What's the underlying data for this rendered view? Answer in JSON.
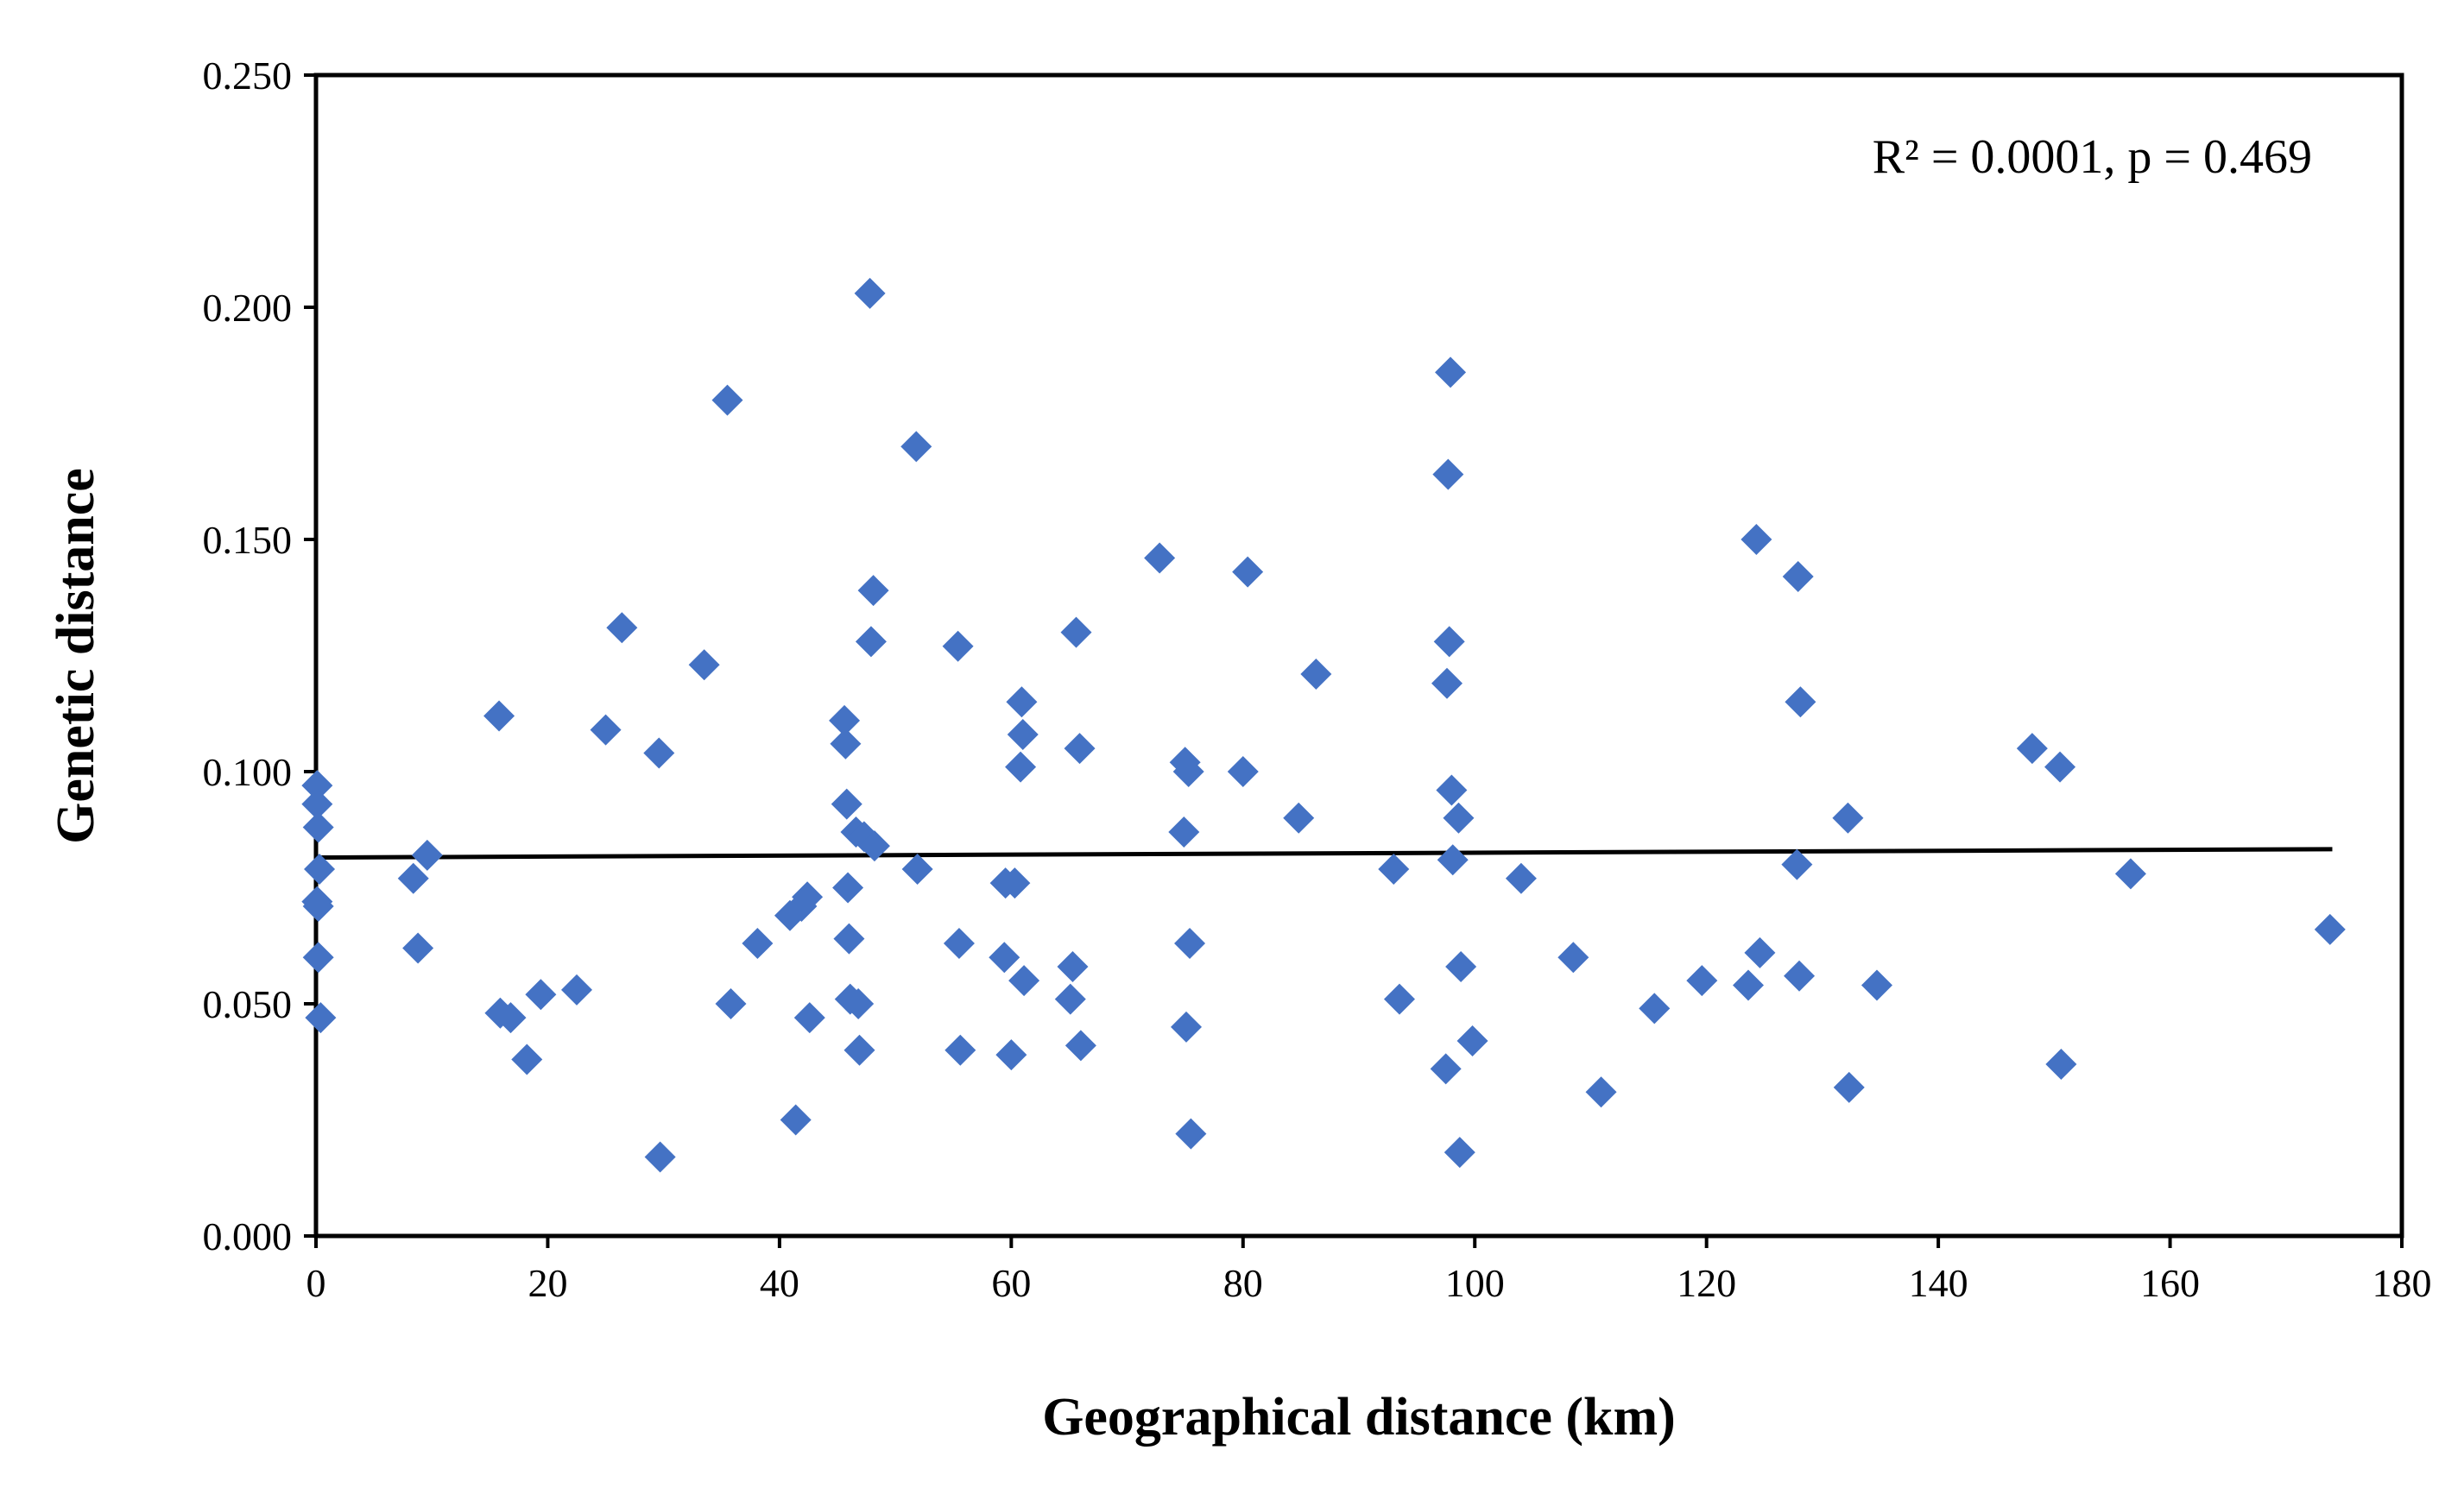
{
  "chart_data": {
    "type": "scatter",
    "title": "",
    "xlabel": "Geographical distance (km)",
    "ylabel": "Genetic distance",
    "xlim": [
      0,
      180
    ],
    "ylim": [
      0,
      0.25
    ],
    "xticks": [
      0,
      20,
      40,
      60,
      80,
      100,
      120,
      140,
      160,
      180
    ],
    "xtick_labels": [
      "0",
      "20",
      "40",
      "60",
      "80",
      "100",
      "120",
      "140",
      "160",
      "180"
    ],
    "yticks": [
      0,
      0.05,
      0.1,
      0.15,
      0.2,
      0.25
    ],
    "ytick_labels": [
      "0.000",
      "0.050",
      "0.100",
      "0.150",
      "0.200",
      "0.250"
    ],
    "grid": false,
    "annotation": "R² = 0.0001, p = 0.469",
    "marker_color": "#4472C4",
    "trendline": {
      "x": [
        0,
        174
      ],
      "y": [
        0.0815,
        0.0833
      ],
      "color": "#000000"
    },
    "points": [
      [
        0.1,
        0.097
      ],
      [
        0.1,
        0.093
      ],
      [
        0.2,
        0.088
      ],
      [
        0.3,
        0.079
      ],
      [
        0.1,
        0.072
      ],
      [
        0.2,
        0.071
      ],
      [
        0.2,
        0.06
      ],
      [
        0.4,
        0.047
      ],
      [
        8.4,
        0.077
      ],
      [
        8.8,
        0.062
      ],
      [
        9.6,
        0.082
      ],
      [
        15.8,
        0.112
      ],
      [
        15.9,
        0.048
      ],
      [
        16.8,
        0.047
      ],
      [
        18.2,
        0.038
      ],
      [
        19.4,
        0.052
      ],
      [
        22.5,
        0.053
      ],
      [
        25.0,
        0.109
      ],
      [
        26.4,
        0.131
      ],
      [
        29.6,
        0.104
      ],
      [
        29.7,
        0.017
      ],
      [
        33.5,
        0.123
      ],
      [
        35.5,
        0.18
      ],
      [
        35.8,
        0.05
      ],
      [
        38.1,
        0.063
      ],
      [
        40.9,
        0.069
      ],
      [
        41.4,
        0.025
      ],
      [
        41.9,
        0.071
      ],
      [
        42.4,
        0.073
      ],
      [
        42.6,
        0.047
      ],
      [
        45.6,
        0.111
      ],
      [
        45.7,
        0.106
      ],
      [
        45.8,
        0.093
      ],
      [
        45.9,
        0.075
      ],
      [
        46.0,
        0.064
      ],
      [
        46.1,
        0.051
      ],
      [
        46.6,
        0.087
      ],
      [
        46.8,
        0.05
      ],
      [
        46.9,
        0.04
      ],
      [
        47.3,
        0.086
      ],
      [
        47.8,
        0.203
      ],
      [
        47.9,
        0.128
      ],
      [
        48.1,
        0.139
      ],
      [
        48.2,
        0.084
      ],
      [
        51.8,
        0.17
      ],
      [
        51.9,
        0.079
      ],
      [
        55.4,
        0.127
      ],
      [
        55.5,
        0.063
      ],
      [
        55.6,
        0.04
      ],
      [
        59.4,
        0.06
      ],
      [
        59.5,
        0.076
      ],
      [
        60.0,
        0.039
      ],
      [
        60.3,
        0.076
      ],
      [
        60.8,
        0.101
      ],
      [
        60.9,
        0.115
      ],
      [
        61.0,
        0.108
      ],
      [
        61.1,
        0.055
      ],
      [
        65.1,
        0.051
      ],
      [
        65.3,
        0.058
      ],
      [
        65.6,
        0.13
      ],
      [
        65.9,
        0.105
      ],
      [
        66.0,
        0.041
      ],
      [
        72.8,
        0.146
      ],
      [
        74.9,
        0.087
      ],
      [
        75.0,
        0.102
      ],
      [
        75.1,
        0.045
      ],
      [
        75.3,
        0.1
      ],
      [
        75.4,
        0.063
      ],
      [
        75.5,
        0.022
      ],
      [
        80.0,
        0.1
      ],
      [
        80.4,
        0.143
      ],
      [
        84.8,
        0.09
      ],
      [
        86.3,
        0.121
      ],
      [
        93.0,
        0.079
      ],
      [
        93.5,
        0.051
      ],
      [
        97.5,
        0.036
      ],
      [
        97.6,
        0.119
      ],
      [
        97.7,
        0.164
      ],
      [
        97.8,
        0.128
      ],
      [
        97.9,
        0.186
      ],
      [
        98.0,
        0.096
      ],
      [
        98.1,
        0.081
      ],
      [
        98.6,
        0.09
      ],
      [
        98.7,
        0.018
      ],
      [
        98.8,
        0.058
      ],
      [
        99.8,
        0.042
      ],
      [
        104.0,
        0.077
      ],
      [
        108.5,
        0.06
      ],
      [
        110.9,
        0.031
      ],
      [
        115.5,
        0.049
      ],
      [
        119.6,
        0.055
      ],
      [
        123.6,
        0.054
      ],
      [
        124.3,
        0.15
      ],
      [
        124.6,
        0.061
      ],
      [
        127.8,
        0.08
      ],
      [
        127.9,
        0.142
      ],
      [
        128.0,
        0.056
      ],
      [
        128.1,
        0.115
      ],
      [
        132.2,
        0.09
      ],
      [
        132.3,
        0.032
      ],
      [
        134.7,
        0.054
      ],
      [
        148.1,
        0.105
      ],
      [
        150.5,
        0.101
      ],
      [
        150.6,
        0.037
      ],
      [
        156.6,
        0.078
      ],
      [
        173.8,
        0.066
      ]
    ]
  }
}
